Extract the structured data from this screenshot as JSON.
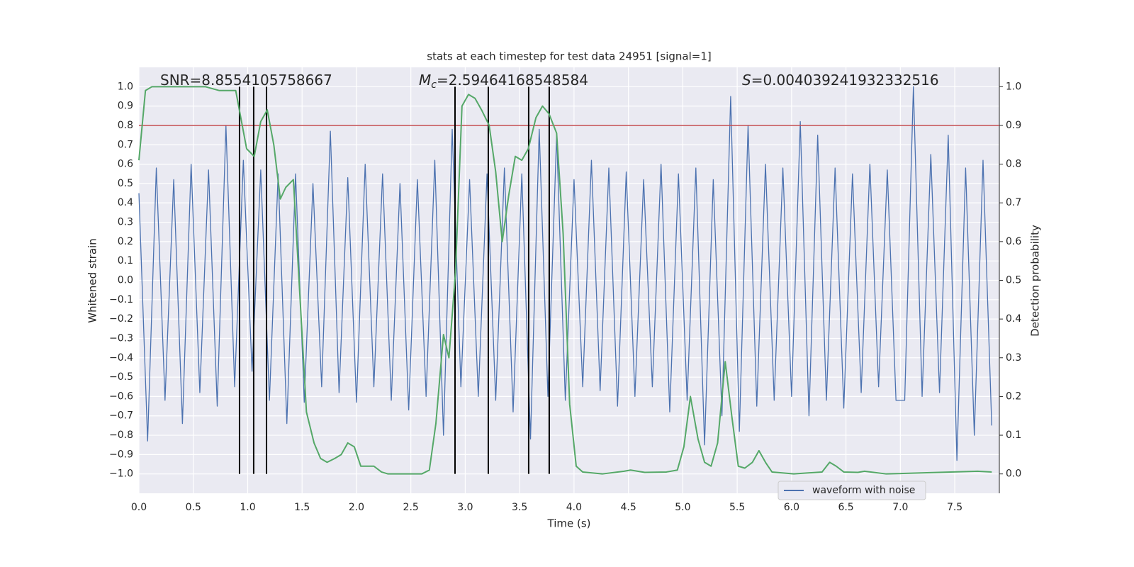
{
  "chart_data": {
    "type": "line",
    "title": "stats at each timestep for test data 24951 [signal=1]",
    "x_label": "Time (s)",
    "y_label": "Whitened strain",
    "y2_label": "Detection probability",
    "xlim": [
      0,
      7.91
    ],
    "ylim": [
      -1.1,
      1.1
    ],
    "y2lim": [
      -0.05,
      1.05
    ],
    "grid": true,
    "legend": "lower right",
    "xticks": [
      {
        "value": 0,
        "label": "0.0"
      },
      {
        "value": 0.5,
        "label": "0.5"
      },
      {
        "value": 1,
        "label": "1.0"
      },
      {
        "value": 1.5,
        "label": "1.5"
      },
      {
        "value": 2,
        "label": "2.0"
      },
      {
        "value": 2.5,
        "label": "2.5"
      },
      {
        "value": 3,
        "label": "3.0"
      },
      {
        "value": 3.5,
        "label": "3.5"
      },
      {
        "value": 4,
        "label": "4.0"
      },
      {
        "value": 4.5,
        "label": "4.5"
      },
      {
        "value": 5,
        "label": "5.0"
      },
      {
        "value": 5.5,
        "label": "5.5"
      },
      {
        "value": 6,
        "label": "6.0"
      },
      {
        "value": 6.5,
        "label": "6.5"
      },
      {
        "value": 7,
        "label": "7.0"
      },
      {
        "value": 7.5,
        "label": "7.5"
      }
    ],
    "yticks": [
      {
        "value": 1,
        "label": "1.0"
      },
      {
        "value": 0.9,
        "label": "0.9"
      },
      {
        "value": 0.8,
        "label": "0.8"
      },
      {
        "value": 0.7,
        "label": "0.7"
      },
      {
        "value": 0.6,
        "label": "0.6"
      },
      {
        "value": 0.5,
        "label": "0.5"
      },
      {
        "value": 0.4,
        "label": "0.4"
      },
      {
        "value": 0.3,
        "label": "0.3"
      },
      {
        "value": 0.2,
        "label": "0.2"
      },
      {
        "value": 0.1,
        "label": "0.1"
      },
      {
        "value": 0,
        "label": "0.0"
      },
      {
        "value": -0.1,
        "label": "−0.1"
      },
      {
        "value": -0.2,
        "label": "−0.2"
      },
      {
        "value": -0.3,
        "label": "−0.3"
      },
      {
        "value": -0.4,
        "label": "−0.4"
      },
      {
        "value": -0.5,
        "label": "−0.5"
      },
      {
        "value": -0.6,
        "label": "−0.6"
      },
      {
        "value": -0.7,
        "label": "−0.7"
      },
      {
        "value": -0.8,
        "label": "−0.8"
      },
      {
        "value": -0.9,
        "label": "−0.9"
      },
      {
        "value": -1,
        "label": "−1.0"
      }
    ],
    "y2ticks": [
      {
        "value": 0,
        "label": "0.0"
      },
      {
        "value": 0.1,
        "label": "0.1"
      },
      {
        "value": 0.2,
        "label": "0.2"
      },
      {
        "value": 0.3,
        "label": "0.3"
      },
      {
        "value": 0.4,
        "label": "0.4"
      },
      {
        "value": 0.5,
        "label": "0.5"
      },
      {
        "value": 0.6,
        "label": "0.6"
      },
      {
        "value": 0.7,
        "label": "0.7"
      },
      {
        "value": 0.8,
        "label": "0.8"
      },
      {
        "value": 0.9,
        "label": "0.9"
      },
      {
        "value": 1,
        "label": "1.0"
      }
    ],
    "annotations": [
      {
        "text": "SNR=8.8554105758667"
      },
      {
        "symbol": "M",
        "subscript": "c",
        "text": "=2.59464168548584"
      },
      {
        "symbol": "S",
        "text": "=0.004039241932332516"
      }
    ],
    "hline": {
      "y": 0.8,
      "color": "#c44e52"
    },
    "vlines": {
      "x": [
        0.925,
        1.055,
        1.173,
        2.906,
        3.212,
        3.583,
        3.772
      ],
      "ymin": -1.0,
      "ymax": 1.0,
      "color": "#000000"
    },
    "series": [
      {
        "name": "waveform with noise",
        "color": "#4c72b0",
        "x": [
          0,
          0.08,
          0.16,
          0.24,
          0.32,
          0.4,
          0.48,
          0.56,
          0.64,
          0.72,
          0.8,
          0.88,
          0.96,
          1.04,
          1.12,
          1.2,
          1.28,
          1.36,
          1.44,
          1.52,
          1.6,
          1.68,
          1.76,
          1.84,
          1.92,
          2,
          2.08,
          2.16,
          2.24,
          2.32,
          2.4,
          2.48,
          2.56,
          2.64,
          2.72,
          2.8,
          2.88,
          2.96,
          3.04,
          3.12,
          3.2,
          3.28,
          3.36,
          3.44,
          3.52,
          3.6,
          3.68,
          3.76,
          3.84,
          3.92,
          4,
          4.08,
          4.16,
          4.24,
          4.32,
          4.4,
          4.48,
          4.56,
          4.64,
          4.72,
          4.8,
          4.88,
          4.96,
          5.04,
          5.12,
          5.2,
          5.28,
          5.36,
          5.44,
          5.52,
          5.6,
          5.68,
          5.76,
          5.84,
          5.92,
          6,
          6.08,
          6.16,
          6.24,
          6.32,
          6.4,
          6.48,
          6.56,
          6.64,
          6.72,
          6.8,
          6.88,
          6.96,
          7.04,
          7.12,
          7.2,
          7.28,
          7.36,
          7.44,
          7.52,
          7.6,
          7.68,
          7.76,
          7.84
        ],
        "values": [
          0.45,
          -0.83,
          0.58,
          -0.62,
          0.52,
          -0.74,
          0.6,
          -0.58,
          0.57,
          -0.65,
          0.8,
          -0.55,
          0.62,
          -0.47,
          0.57,
          -0.62,
          0.55,
          -0.74,
          0.55,
          -0.63,
          0.5,
          -0.55,
          0.77,
          -0.58,
          0.53,
          -0.63,
          0.6,
          -0.55,
          0.55,
          -0.62,
          0.5,
          -0.67,
          0.52,
          -0.6,
          0.62,
          -0.8,
          0.78,
          -0.55,
          0.52,
          -0.6,
          0.55,
          -0.62,
          0.58,
          -0.68,
          0.55,
          -0.82,
          0.78,
          -0.6,
          0.75,
          -0.62,
          0.52,
          -0.55,
          0.62,
          -0.57,
          0.58,
          -0.65,
          0.56,
          -0.6,
          0.52,
          -0.55,
          0.6,
          -0.68,
          0.55,
          -0.62,
          0.58,
          -0.85,
          0.52,
          -0.7,
          0.95,
          -0.78,
          0.8,
          -0.65,
          0.6,
          -0.62,
          0.58,
          -0.6,
          0.82,
          -0.7,
          0.75,
          -0.62,
          0.58,
          -0.66,
          0.55,
          -0.58,
          0.6,
          -0.55,
          0.57,
          -0.62,
          -0.62,
          1.0,
          -0.6,
          0.65,
          -0.58,
          0.75,
          -0.93,
          0.58,
          -0.8,
          0.62,
          -0.75
        ]
      },
      {
        "color": "#55a868",
        "axis": "y2",
        "x": [
          0,
          0.06,
          0.12,
          0.61,
          0.74,
          0.84,
          0.89,
          0.99,
          1.06,
          1.12,
          1.18,
          1.24,
          1.3,
          1.35,
          1.42,
          1.54,
          1.61,
          1.67,
          1.73,
          1.8,
          1.86,
          1.92,
          1.98,
          2.04,
          2.1,
          2.16,
          2.23,
          2.29,
          2.6,
          2.67,
          2.73,
          2.8,
          2.85,
          2.91,
          2.97,
          3.03,
          3.09,
          3.15,
          3.22,
          3.28,
          3.34,
          3.4,
          3.46,
          3.52,
          3.58,
          3.65,
          3.71,
          3.77,
          3.84,
          3.9,
          3.96,
          4.02,
          4.08,
          4.26,
          4.46,
          4.52,
          4.65,
          4.85,
          4.95,
          5.01,
          5.07,
          5.14,
          5.2,
          5.26,
          5.32,
          5.39,
          5.45,
          5.51,
          5.57,
          5.64,
          5.7,
          5.76,
          5.82,
          6.02,
          6.28,
          6.35,
          6.41,
          6.48,
          6.61,
          6.67,
          6.87,
          7.71,
          7.84
        ],
        "values": [
          0.81,
          0.99,
          1.0,
          1.0,
          0.99,
          0.99,
          0.99,
          0.84,
          0.82,
          0.91,
          0.94,
          0.85,
          0.71,
          0.74,
          0.76,
          0.16,
          0.08,
          0.04,
          0.03,
          0.04,
          0.05,
          0.08,
          0.07,
          0.02,
          0.02,
          0.02,
          0.005,
          0.0,
          0.0,
          0.01,
          0.13,
          0.36,
          0.3,
          0.52,
          0.95,
          0.98,
          0.97,
          0.94,
          0.9,
          0.78,
          0.6,
          0.72,
          0.82,
          0.81,
          0.84,
          0.92,
          0.95,
          0.93,
          0.88,
          0.62,
          0.18,
          0.02,
          0.005,
          0.0,
          0.007,
          0.01,
          0.004,
          0.005,
          0.01,
          0.07,
          0.2,
          0.09,
          0.03,
          0.02,
          0.08,
          0.29,
          0.15,
          0.02,
          0.015,
          0.03,
          0.06,
          0.03,
          0.005,
          0.0,
          0.005,
          0.03,
          0.02,
          0.005,
          0.004,
          0.007,
          0.0,
          0.007,
          0.005
        ]
      }
    ]
  }
}
